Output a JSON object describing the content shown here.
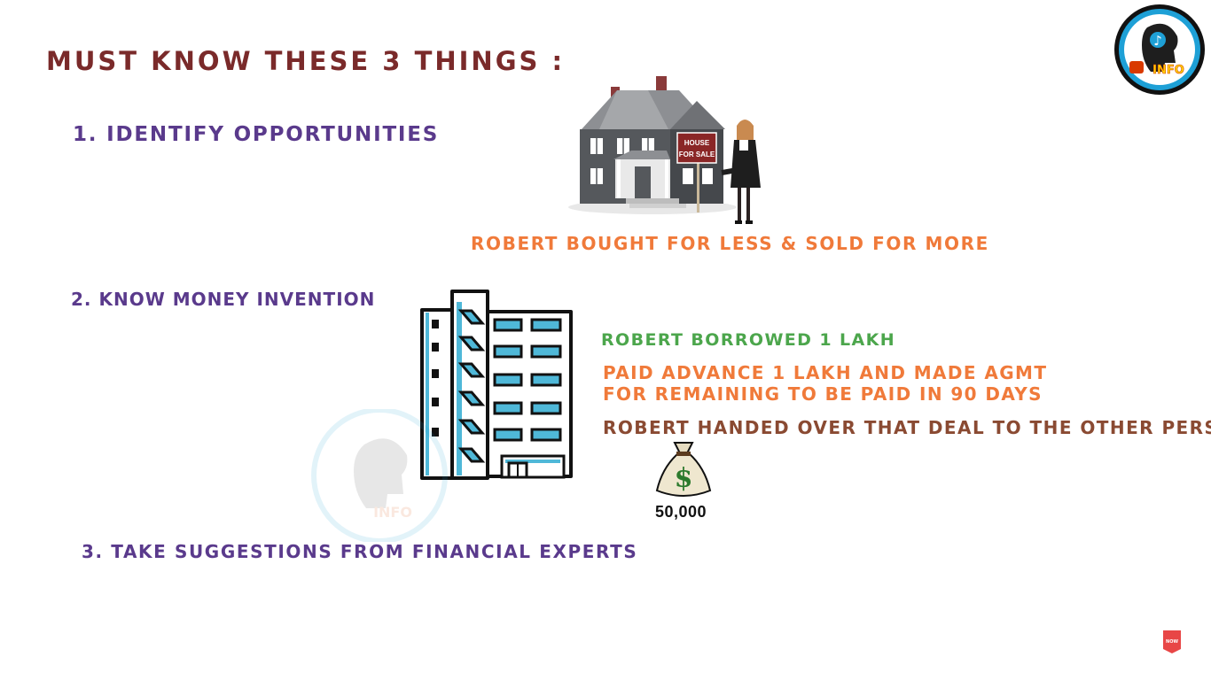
{
  "colors": {
    "title": "#7a2a2a",
    "purple": "#5a3a8c",
    "orange": "#f07a3a",
    "green": "#4ca64c",
    "brown": "#8a4a32",
    "black": "#111111",
    "cyan": "#4fb8d8",
    "logo_blue": "#1ea0d6"
  },
  "heading": "MUST KNOW THESE 3 THINGS :",
  "points": [
    "1. IDENTIFY  OPPORTUNITIES",
    "2. KNOW MONEY INVENTION",
    "3. TAKE SUGGESTIONS  FROM  FINANCIAL  EXPERTS"
  ],
  "notes": {
    "bought_sold": "ROBERT  BOUGHT  FOR  LESS &  SOLD  FOR  MORE",
    "borrowed": "ROBERT  BORROWED  1 LAKH",
    "advance_line1": "PAID  ADVANCE  1 LAKH  AND  MADE  AGMT",
    "advance_line2": "FOR  REMAINING  TO  BE  PAID  IN  90  DAYS",
    "handed_over": "ROBERT  HANDED  OVER  THAT  DEAL  TO  THE  OTHER  PERSON"
  },
  "house_sign": {
    "line1": "HOUSE",
    "line2": "FOR SALE"
  },
  "amount": "50,000",
  "logo": {
    "text": "INFO",
    "icon": "head-music-note-icon"
  },
  "badge_text": "NOW"
}
